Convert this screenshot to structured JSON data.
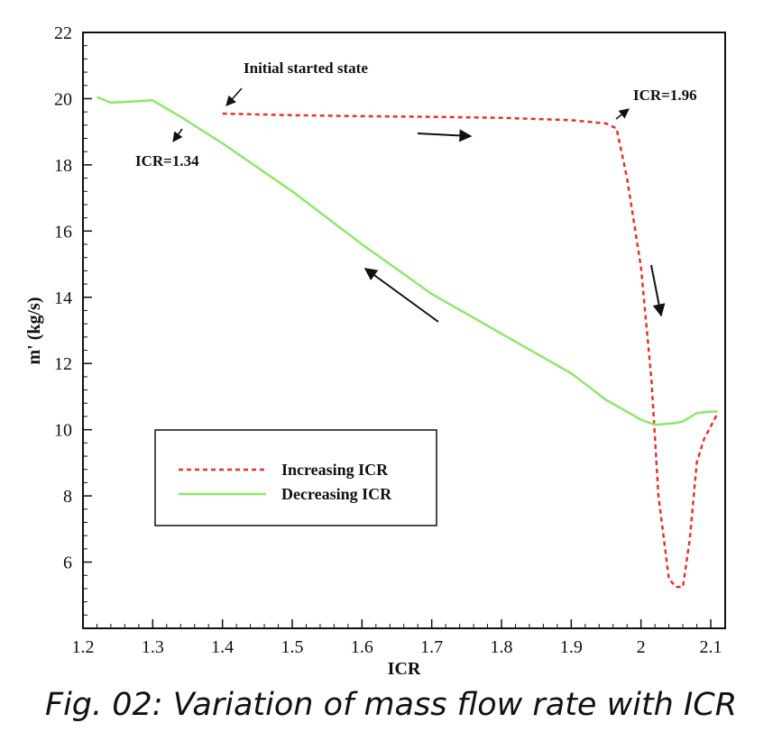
{
  "chart_data": {
    "type": "line",
    "title": "",
    "xlabel": "ICR",
    "ylabel": "m' (kg/s)",
    "xlim": [
      1.2,
      2.15
    ],
    "ylim": [
      4,
      22
    ],
    "xticks": [
      "1.2",
      "1.3",
      "1.4",
      "1.5",
      "1.6",
      "1.7",
      "1.8",
      "1.9",
      "2",
      "2.1"
    ],
    "yticks": [
      "6",
      "8",
      "10",
      "12",
      "14",
      "16",
      "18",
      "20",
      "22"
    ],
    "grid": false,
    "legend_position": "lower-left",
    "series": [
      {
        "name": "Increasing ICR",
        "color": "#e8302e",
        "style": "dashed",
        "x": [
          1.4,
          1.5,
          1.6,
          1.7,
          1.8,
          1.9,
          1.95,
          1.965,
          1.98,
          2.0,
          2.015,
          2.025,
          2.04,
          2.05,
          2.06,
          2.07,
          2.08,
          2.09,
          2.11
        ],
        "y": [
          19.55,
          19.5,
          19.47,
          19.45,
          19.42,
          19.35,
          19.25,
          19.1,
          17.6,
          14.9,
          11.5,
          8.0,
          5.5,
          5.25,
          5.25,
          6.7,
          9.0,
          9.7,
          10.5
        ]
      },
      {
        "name": "Decreasing ICR",
        "color": "#8fe66a",
        "style": "solid",
        "x": [
          2.11,
          2.1,
          2.08,
          2.06,
          2.05,
          2.02,
          2.0,
          1.95,
          1.9,
          1.8,
          1.7,
          1.6,
          1.5,
          1.4,
          1.34,
          1.32,
          1.3,
          1.26,
          1.24,
          1.22
        ],
        "y": [
          10.55,
          10.55,
          10.5,
          10.25,
          10.2,
          10.15,
          10.3,
          10.9,
          11.7,
          12.9,
          14.1,
          15.6,
          17.2,
          18.65,
          19.45,
          19.7,
          19.95,
          19.9,
          19.88,
          20.05
        ]
      }
    ],
    "annotations": [
      {
        "text": "Initial started state"
      },
      {
        "text": "ICR=1.96"
      },
      {
        "text": "ICR=1.34"
      }
    ]
  },
  "caption": "Fig. 02: Variation of mass flow rate with ICR"
}
